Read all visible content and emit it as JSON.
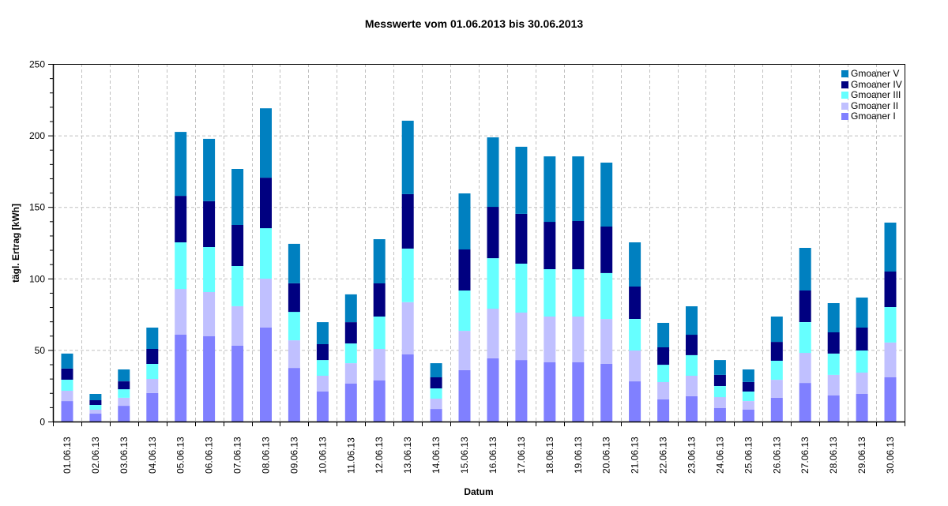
{
  "title": "Messwerte vom 01.06.2013 bis 30.06.2013",
  "chart_data": {
    "type": "bar",
    "stacked": true,
    "title": "Messwerte vom 01.06.2013 bis 30.06.2013",
    "xlabel": "Datum",
    "ylabel": "tägl. Ertrag [kWh]",
    "ylim": [
      0,
      250
    ],
    "yticks": [
      0,
      50,
      100,
      150,
      200,
      250
    ],
    "grid": true,
    "legend_position": "top-right inside",
    "categories": [
      "01.06.13",
      "02.06.13",
      "03.06.13",
      "04.06.13",
      "05.06.13",
      "06.06.13",
      "07.06.13",
      "08.06.13",
      "09.06.13",
      "10.06.13",
      "11.06.13",
      "12.06.13",
      "13.06.13",
      "14.06.13",
      "15.06.13",
      "16.06.13",
      "17.06.13",
      "18.06.13",
      "19.06.13",
      "20.06.13",
      "21.06.13",
      "22.06.13",
      "23.06.13",
      "24.06.13",
      "25.06.13",
      "26.06.13",
      "27.06.13",
      "28.06.13",
      "29.06.13",
      "30.06.13"
    ],
    "series": [
      {
        "name": "Gmoaner I",
        "color": "#8080ff",
        "values": [
          14.3,
          5.5,
          11.0,
          19.9,
          60.7,
          59.6,
          53.0,
          65.7,
          37.5,
          21.0,
          26.5,
          28.7,
          46.9,
          8.8,
          35.9,
          44.2,
          43.0,
          41.4,
          41.4,
          40.3,
          28.1,
          15.5,
          17.7,
          9.4,
          8.3,
          16.6,
          27.0,
          18.2,
          19.3,
          30.9
        ]
      },
      {
        "name": "Gmoaner II",
        "color": "#c0c0ff",
        "values": [
          7.2,
          2.8,
          5.6,
          9.9,
          32.0,
          30.9,
          27.6,
          34.2,
          19.3,
          11.0,
          14.3,
          22.1,
          36.5,
          7.2,
          27.5,
          34.7,
          33.2,
          32.0,
          32.0,
          31.4,
          21.6,
          12.1,
          14.3,
          7.7,
          6.0,
          12.6,
          21.0,
          14.4,
          14.9,
          24.3
        ]
      },
      {
        "name": "Gmoaner III",
        "color": "#66ffff",
        "values": [
          7.8,
          3.3,
          6.0,
          10.5,
          32.6,
          31.5,
          28.1,
          35.3,
          19.9,
          11.0,
          13.8,
          22.6,
          37.5,
          7.2,
          28.2,
          35.3,
          34.2,
          33.1,
          33.1,
          32.1,
          22.0,
          12.1,
          14.4,
          7.7,
          6.7,
          13.3,
          21.5,
          14.9,
          15.5,
          24.8
        ]
      },
      {
        "name": "Gmoaner IV",
        "color": "#000080",
        "values": [
          7.7,
          3.3,
          5.5,
          10.5,
          32.5,
          32.0,
          28.7,
          35.3,
          19.9,
          11.1,
          14.9,
          23.2,
          38.1,
          7.7,
          28.7,
          35.9,
          34.8,
          33.1,
          33.7,
          32.5,
          22.7,
          12.2,
          14.3,
          7.8,
          6.6,
          13.2,
          22.1,
          14.9,
          16.0,
          24.9
        ]
      },
      {
        "name": "Gmoaner V",
        "color": "#0080c0",
        "values": [
          10.5,
          4.4,
          8.3,
          14.9,
          44.7,
          43.6,
          39.2,
          48.5,
          27.6,
          15.4,
          19.4,
          30.9,
          51.3,
          9.9,
          39.2,
          48.6,
          46.9,
          45.8,
          45.2,
          44.7,
          30.9,
          17.1,
          19.9,
          10.4,
          8.8,
          17.7,
          29.8,
          20.4,
          21.0,
          34.2
        ]
      }
    ],
    "totals": [
      47.5,
      19.3,
      36.4,
      65.7,
      202.5,
      197.6,
      176.6,
      219.0,
      124.2,
      69.5,
      88.9,
      127.5,
      210.3,
      40.8,
      159.5,
      198.7,
      192.1,
      185.4,
      185.4,
      181.0,
      125.3,
      69.0,
      80.6,
      43.0,
      36.4,
      73.4,
      121.4,
      82.8,
      86.7,
      139.1
    ]
  },
  "legend": [
    {
      "label": "Gmoaner V",
      "color": "#0080c0"
    },
    {
      "label": "Gmoaner IV",
      "color": "#000080"
    },
    {
      "label": "Gmoaner III",
      "color": "#66ffff"
    },
    {
      "label": "Gmoaner II",
      "color": "#c0c0ff"
    },
    {
      "label": "Gmoaner I",
      "color": "#8080ff"
    }
  ]
}
